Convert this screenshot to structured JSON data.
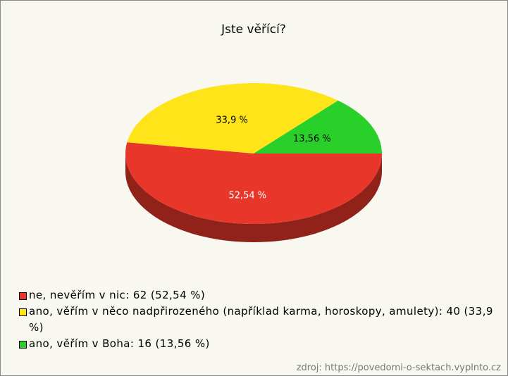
{
  "chart_data": {
    "type": "pie",
    "title": "Jste věřící?",
    "categories": [
      "ne, nevěřím v nic: 62 (52,54 %)",
      "ano, věřím v něco nadpřirozeného (například karma, horoskopy, amulety): 40 (33,9 %)",
      "ano, věřím v Boha: 16 (13,56 %)"
    ],
    "values": [
      52.54,
      33.9,
      13.56
    ],
    "value_labels": [
      "52,54 %",
      "33,9 %",
      "13,56 %"
    ],
    "colors": [
      "#e8372a",
      "#ffe41a",
      "#2ad02a"
    ],
    "source": "zdroj: https://povedomi-o-sektach.vyplnto.cz"
  }
}
